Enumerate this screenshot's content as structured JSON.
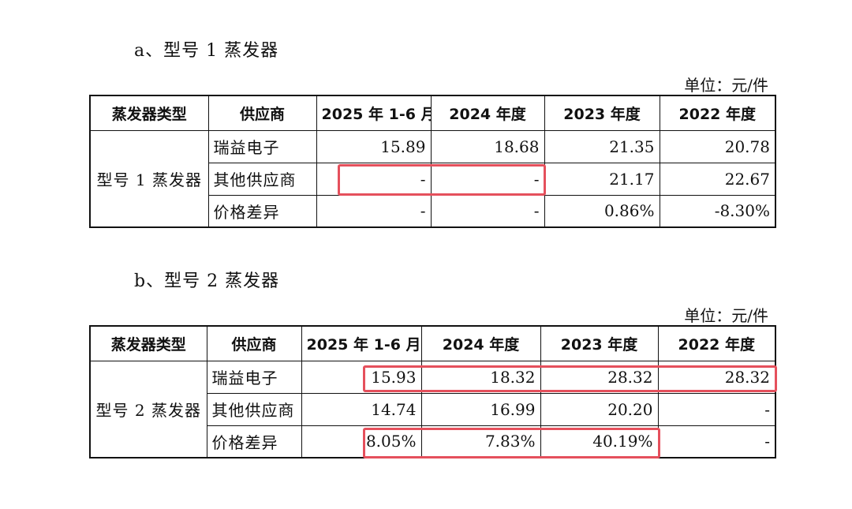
{
  "colors": {
    "highlight": "#e5505c",
    "border": "#111111",
    "text": "#111111"
  },
  "table_a": {
    "title": "a、型号 1 蒸发器",
    "unit": "单位：元/件",
    "headers": [
      "蒸发器类型",
      "供应商",
      "2025 年 1-6 月",
      "2024 年度",
      "2023 年度",
      "2022 年度"
    ],
    "type_label": "型号 1 蒸发器",
    "rows": [
      {
        "supplier": "瑞益电子",
        "values": [
          "15.89",
          "18.68",
          "21.35",
          "20.78"
        ]
      },
      {
        "supplier": "其他供应商",
        "values": [
          "-",
          "-",
          "21.17",
          "22.67"
        ]
      },
      {
        "supplier": "价格差异",
        "values": [
          "-",
          "-",
          "0.86%",
          "-8.30%"
        ]
      }
    ]
  },
  "table_b": {
    "title": "b、型号 2 蒸发器",
    "unit": "单位：元/件",
    "headers": [
      "蒸发器类型",
      "供应商",
      "2025 年 1-6 月",
      "2024 年度",
      "2023 年度",
      "2022 年度"
    ],
    "type_label": "型号 2 蒸发器",
    "rows": [
      {
        "supplier": "瑞益电子",
        "values": [
          "15.93",
          "18.32",
          "28.32",
          "28.32"
        ]
      },
      {
        "supplier": "其他供应商",
        "values": [
          "14.74",
          "16.99",
          "20.20",
          "-"
        ]
      },
      {
        "supplier": "价格差异",
        "values": [
          "8.05%",
          "7.83%",
          "40.19%",
          "-"
        ]
      }
    ]
  }
}
